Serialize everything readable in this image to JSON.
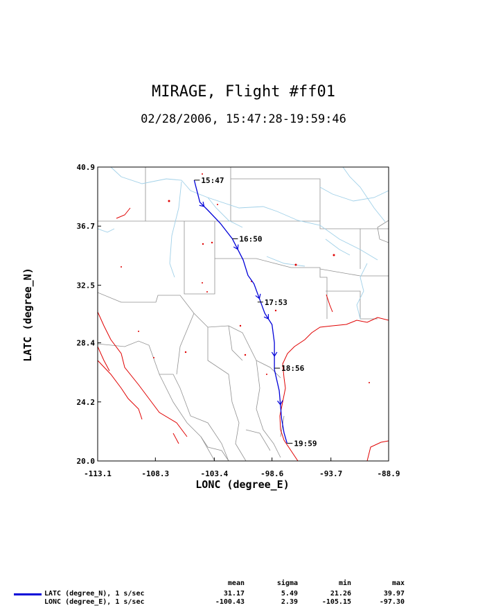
{
  "title": "MIRAGE, Flight #ff01",
  "subtitle": "02/28/2006, 15:47:28-19:59:46",
  "colors": {
    "track": "#0000d8",
    "coast": "#e00000",
    "rivers": "#a0d0e8",
    "borders": "#909090"
  },
  "chart_data": {
    "type": "line",
    "xlabel": "LONC (degree_E)",
    "ylabel": "LATC (degree_N)",
    "xlim": [
      -113.1,
      -88.9
    ],
    "ylim": [
      20.0,
      40.9
    ],
    "xticks": [
      "-113.1",
      "-108.3",
      "-103.4",
      "-98.6",
      "-93.7",
      "-88.9"
    ],
    "yticks": [
      "20.0",
      "24.2",
      "28.4",
      "32.5",
      "36.7",
      "40.9"
    ],
    "grid": false,
    "series": [
      {
        "name": "LATC (degree_N), 1 s/sec",
        "x": [
          -105.07,
          -104.9,
          -104.6,
          -103.9,
          -102.9,
          -101.9,
          -101.0,
          -100.6,
          -100.1,
          -99.2,
          -98.6,
          -98.4,
          -98.4,
          -98.0,
          -97.8,
          -97.6,
          -97.35
        ],
        "y": [
          39.97,
          39.4,
          38.4,
          37.8,
          36.9,
          35.8,
          34.3,
          33.2,
          32.6,
          30.5,
          29.7,
          28.4,
          26.5,
          25.0,
          23.0,
          22.0,
          21.26
        ]
      }
    ],
    "time_labels": [
      {
        "label": "15:47",
        "lon": -105.07,
        "lat": 39.97
      },
      {
        "label": "16:50",
        "lon": -101.9,
        "lat": 35.8
      },
      {
        "label": "17:53",
        "lon": -99.8,
        "lat": 31.3
      },
      {
        "label": "18:56",
        "lon": -98.4,
        "lat": 26.6
      },
      {
        "label": "19:59",
        "lon": -97.35,
        "lat": 21.26
      }
    ],
    "legend": {
      "headers": [
        "mean",
        "sigma",
        "min",
        "max"
      ],
      "rows": [
        {
          "name": "LATC (degree_N), 1 s/sec",
          "mean": "31.17",
          "sigma": "5.49",
          "min": "21.26",
          "max": "39.97"
        },
        {
          "name": "LONC (degree_E), 1 s/sec",
          "mean": "-100.43",
          "sigma": "2.39",
          "min": "-105.15",
          "max": "-97.30"
        }
      ]
    }
  }
}
